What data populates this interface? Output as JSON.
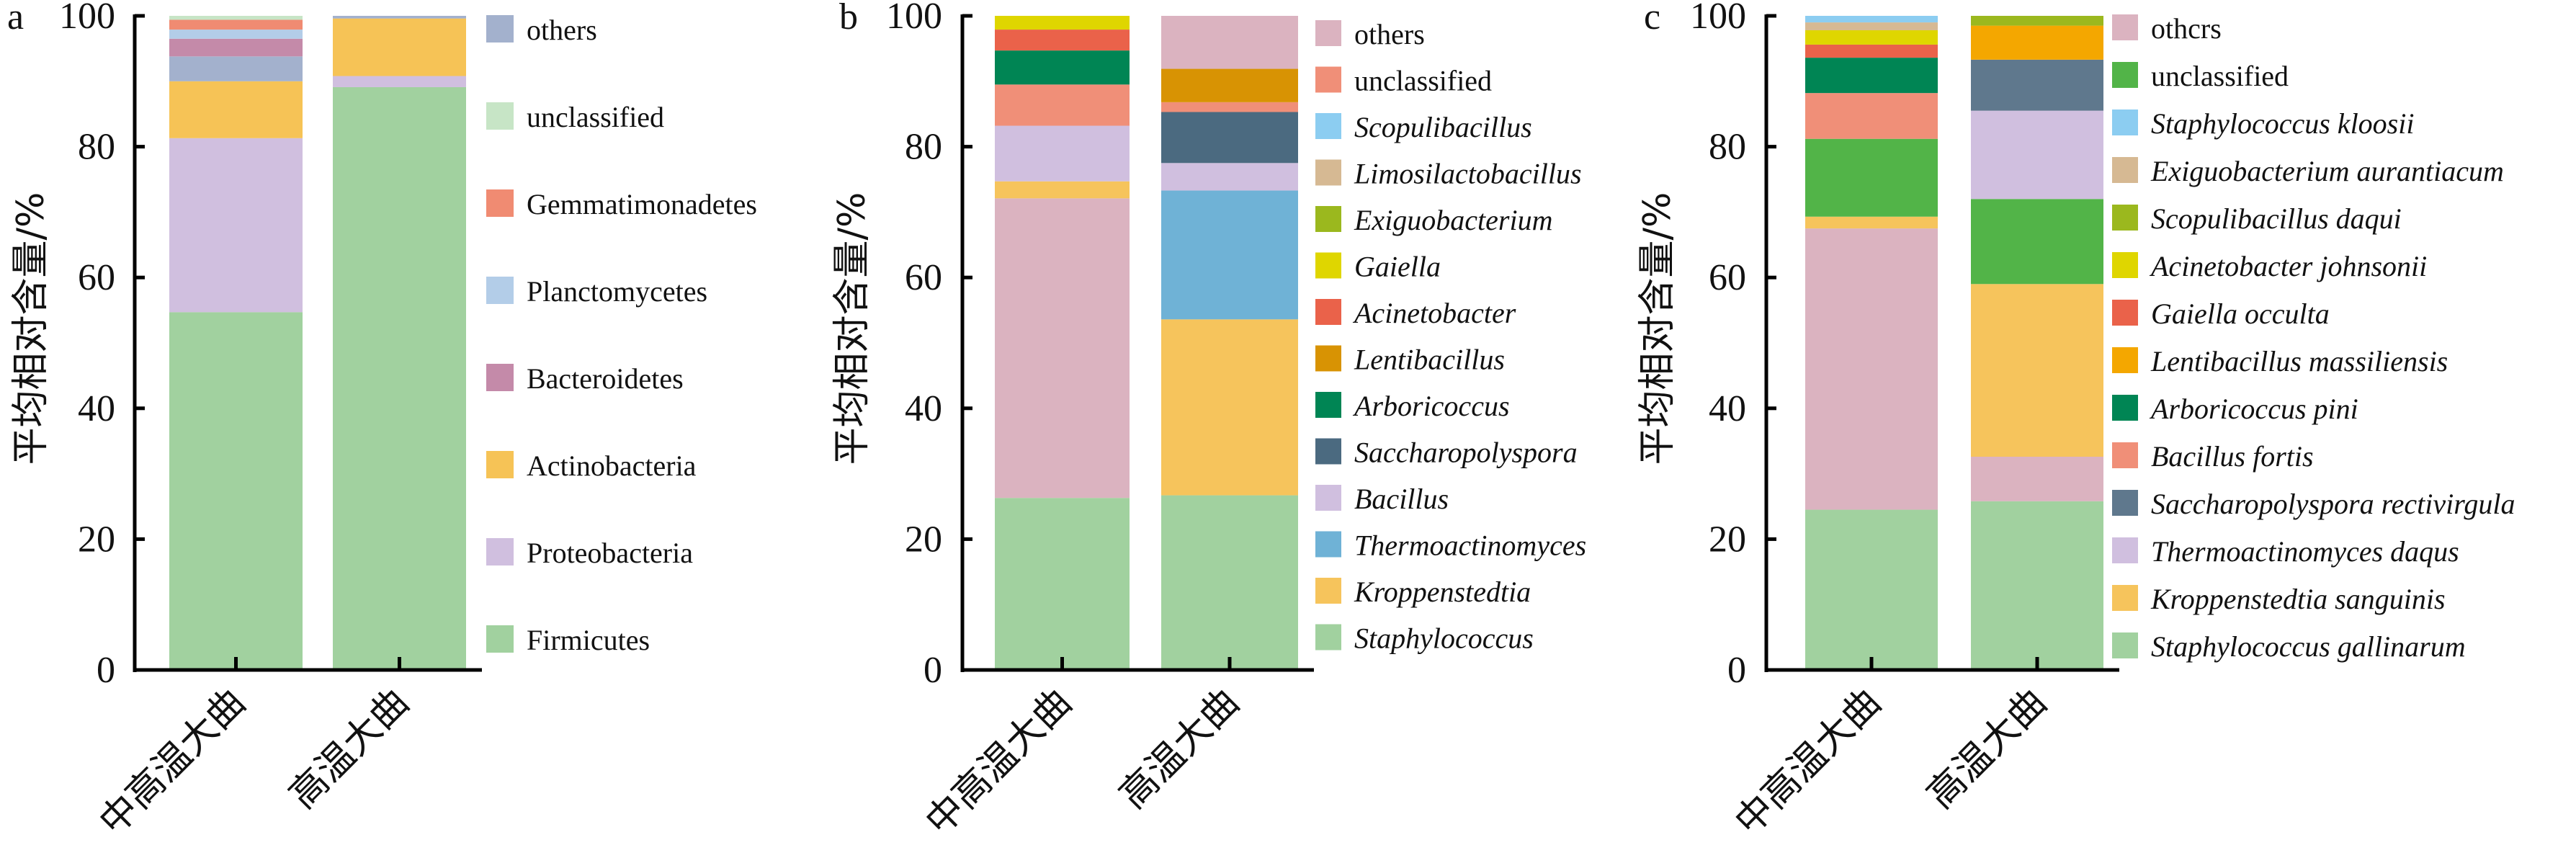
{
  "chart_data": [
    {
      "type": "bar",
      "stacked": true,
      "panel": "a",
      "title": "",
      "xlabel": "",
      "ylabel": "平均相对含量/%",
      "ylim": [
        0,
        100
      ],
      "yticks": [
        "0",
        "20",
        "40",
        "60",
        "80",
        "100"
      ],
      "categories": [
        "中高温大曲",
        "高温大曲"
      ],
      "italic_legend": false,
      "legend": [
        "others",
        "unclassified",
        "Gemmatimonadetes",
        "Planctomycetes",
        "Bacteroidetes",
        "Actinobacteria",
        "Proteobacteria",
        "Firmicutes"
      ],
      "series": [
        {
          "name": "Firmicutes",
          "color": "#a1d19f",
          "values": [
            54.7,
            89.1
          ]
        },
        {
          "name": "Proteobacteria",
          "color": "#d0bfdf",
          "values": [
            26.6,
            1.7
          ]
        },
        {
          "name": "Actinobacteria",
          "color": "#f6c356",
          "values": [
            8.7,
            8.8
          ]
        },
        {
          "name": "others",
          "color": "#a3b1cd",
          "values": [
            3.8,
            0.4
          ]
        },
        {
          "name": "Bacteroidetes",
          "color": "#c48aa9",
          "values": [
            2.7,
            0
          ]
        },
        {
          "name": "Planctomycetes",
          "color": "#b3cde8",
          "values": [
            1.4,
            0
          ]
        },
        {
          "name": "Gemmatimonadetes",
          "color": "#f08b72",
          "values": [
            1.5,
            0
          ]
        },
        {
          "name": "unclassified",
          "color": "#c7e5c6",
          "values": [
            0.6,
            0
          ]
        }
      ]
    },
    {
      "type": "bar",
      "stacked": true,
      "panel": "b",
      "title": "",
      "xlabel": "",
      "ylabel": "平均相对含量/%",
      "ylim": [
        0,
        100
      ],
      "yticks": [
        "0",
        "20",
        "40",
        "60",
        "80",
        "100"
      ],
      "categories": [
        "中高温大曲",
        "高温大曲"
      ],
      "italic_legend": true,
      "legend": [
        "others",
        "unclassified",
        "Scopulibacillus",
        "Limosilactobacillus",
        "Exiguobacterium",
        "Gaiella",
        "Acinetobacter",
        "Lentibacillus",
        "Arboricoccus",
        "Saccharopolyspora",
        "Bacillus",
        "Thermoactinomyces",
        "Kroppenstedtia",
        "Staphylococcus"
      ],
      "nonitalic": [
        "others",
        "unclassified"
      ],
      "series": [
        {
          "name": "Staphylococcus",
          "color": "#a1d19f",
          "values": [
            26.3,
            26.7
          ]
        },
        {
          "name": "Kroppenstedtia",
          "color": "#f6c45c",
          "values": [
            2.6,
            26.9
          ]
        },
        {
          "name": "Thermoactinomyces",
          "color": "#6fb2d6",
          "values": [
            0,
            19.7
          ]
        },
        {
          "name": "Bacillus",
          "color": "#d0bfdf",
          "values": [
            8.5,
            4.2
          ]
        },
        {
          "name": "Saccharopolyspora",
          "color": "#4b6a80",
          "values": [
            0,
            7.8
          ]
        },
        {
          "name": "Arboricoccus",
          "color": "#008554",
          "values": [
            5.2,
            0
          ]
        },
        {
          "name": "Lentibacillus",
          "color": "#d89303",
          "values": [
            0,
            5.1
          ]
        },
        {
          "name": "Acinetobacter",
          "color": "#ea624a",
          "values": [
            3.2,
            0
          ]
        },
        {
          "name": "Gaiella",
          "color": "#dfd600",
          "values": [
            2.1,
            0
          ]
        },
        {
          "name": "Exiguobacterium",
          "color": "#9bb81e",
          "values": [
            0,
            0
          ]
        },
        {
          "name": "Limosilactobacillus",
          "color": "#d6b993",
          "values": [
            0,
            0
          ]
        },
        {
          "name": "Scopulibacillus",
          "color": "#8ccdf1",
          "values": [
            0,
            0
          ]
        },
        {
          "name": "unclassified",
          "color": "#f08f78",
          "values": [
            6.3,
            1.5
          ]
        },
        {
          "name": "others",
          "color": "#dbb3c0",
          "values": [
            45.8,
            8.1
          ]
        }
      ],
      "stack_order": [
        [
          "Staphylococcus",
          "others",
          "Kroppenstedtia",
          "Bacillus",
          "unclassified",
          "Arboricoccus",
          "Acinetobacter",
          "Gaiella"
        ],
        [
          "Staphylococcus",
          "Kroppenstedtia",
          "Thermoactinomyces",
          "Bacillus",
          "Saccharopolyspora",
          "unclassified",
          "Lentibacillus",
          "others"
        ]
      ]
    },
    {
      "type": "bar",
      "stacked": true,
      "panel": "c",
      "title": "",
      "xlabel": "",
      "ylabel": "平均相对含量/%",
      "ylim": [
        0,
        100
      ],
      "yticks": [
        "0",
        "20",
        "40",
        "60",
        "80",
        "100"
      ],
      "categories": [
        "中高温大曲",
        "高温大曲"
      ],
      "italic_legend": true,
      "legend": [
        "othcrs",
        "unclassified",
        "Staphylococcus kloosii",
        "Exiguobacterium aurantiacum",
        "Scopulibacillus daqui",
        "Acinetobacter johnsonii",
        "Gaiella occulta",
        "Lentibacillus massiliensis",
        "Arboricoccus pini",
        "Bacillus fortis",
        "Saccharopolyspora rectivirgula",
        "Thermoactinomyces daqus",
        "Kroppenstedtia sanguinis",
        "Staphylococcus gallinarum"
      ],
      "nonitalic": [
        "othcrs",
        "unclassified"
      ],
      "series": [
        {
          "name": "Staphylococcus gallinarum",
          "color": "#a1d19f",
          "values": [
            24.5,
            25.8
          ]
        },
        {
          "name": "Kroppenstedtia sanguinis",
          "color": "#f6c45c",
          "values": [
            1.8,
            26.4
          ]
        },
        {
          "name": "Thermoactinomyces daqus",
          "color": "#d0bfdf",
          "values": [
            0,
            13.5
          ]
        },
        {
          "name": "Saccharopolyspora rectivirgula",
          "color": "#5f788d",
          "values": [
            0,
            7.8
          ]
        },
        {
          "name": "Bacillus fortis",
          "color": "#f08f78",
          "values": [
            7.0,
            0
          ]
        },
        {
          "name": "Arboricoccus pini",
          "color": "#008554",
          "values": [
            5.4,
            0
          ]
        },
        {
          "name": "Lentibacillus massiliensis",
          "color": "#f4a700",
          "values": [
            0,
            5.2
          ]
        },
        {
          "name": "Gaiella occulta",
          "color": "#ea624a",
          "values": [
            2.0,
            0
          ]
        },
        {
          "name": "Acinetobacter johnsonii",
          "color": "#dfd600",
          "values": [
            2.2,
            0
          ]
        },
        {
          "name": "Scopulibacillus daqui",
          "color": "#9bb81e",
          "values": [
            0,
            1.5
          ]
        },
        {
          "name": "Exiguobacterium aurantiacum",
          "color": "#d6b993",
          "values": [
            1.2,
            0
          ]
        },
        {
          "name": "Staphylococcus kloosii",
          "color": "#8ccdf1",
          "values": [
            1.0,
            0
          ]
        },
        {
          "name": "unclassified",
          "color": "#52b448",
          "values": [
            11.9,
            13.0
          ]
        },
        {
          "name": "othcrs",
          "color": "#dbb3c0",
          "values": [
            43.0,
            6.8
          ]
        }
      ],
      "stack_order": [
        [
          "Staphylococcus gallinarum",
          "othcrs",
          "Kroppenstedtia sanguinis",
          "unclassified",
          "Bacillus fortis",
          "Arboricoccus pini",
          "Gaiella occulta",
          "Acinetobacter johnsonii",
          "Exiguobacterium aurantiacum",
          "Staphylococcus kloosii"
        ],
        [
          "Staphylococcus gallinarum",
          "othcrs",
          "Kroppenstedtia sanguinis",
          "unclassified",
          "Thermoactinomyces daqus",
          "Saccharopolyspora rectivirgula",
          "Lentibacillus massiliensis",
          "Scopulibacillus daqui"
        ]
      ]
    }
  ]
}
